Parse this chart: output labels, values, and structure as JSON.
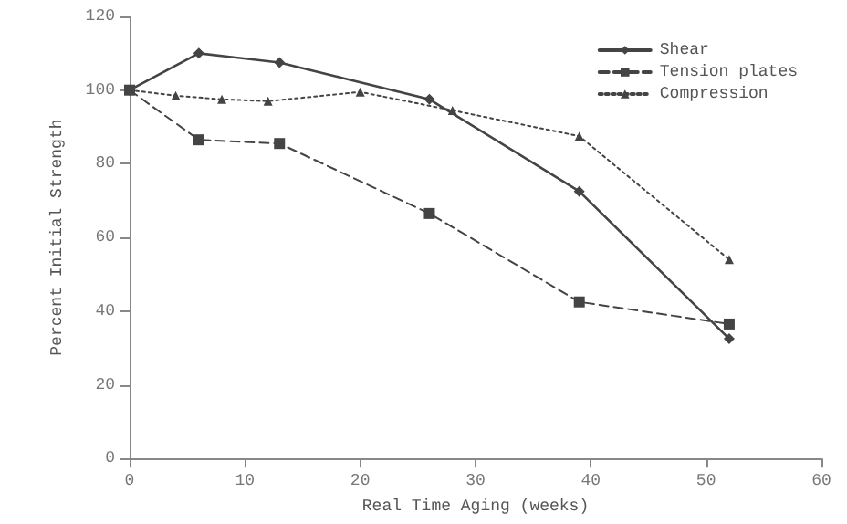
{
  "chart_data": {
    "type": "line",
    "xlabel": "Real Time Aging (weeks)",
    "ylabel": "Percent Initial Strength",
    "xlim": [
      0,
      60
    ],
    "xticks": [
      0,
      10,
      20,
      30,
      40,
      50,
      60
    ],
    "ylim": [
      0,
      120
    ],
    "yticks": [
      0,
      20,
      40,
      60,
      80,
      100,
      120
    ],
    "grid": false,
    "legend": "top right",
    "series": [
      {
        "name": "Shear",
        "color": "#444444",
        "marker": "diamond",
        "line_style": "solid",
        "x": [
          0,
          6,
          13,
          26,
          39,
          52
        ],
        "values": [
          100,
          110,
          107.5,
          97.5,
          72.5,
          32.5
        ]
      },
      {
        "name": "Tension plates",
        "color": "#444444",
        "marker": "square",
        "line_style": "dashed",
        "x": [
          0,
          6,
          13,
          26,
          39,
          52
        ],
        "values": [
          100,
          86.5,
          85.5,
          66.5,
          42.5,
          36.5
        ]
      },
      {
        "name": "Compression",
        "color": "#444444",
        "marker": "triangle",
        "line_style": "dotted",
        "x": [
          0,
          4,
          8,
          12,
          20,
          28,
          39,
          52
        ],
        "values": [
          100,
          98.5,
          97.5,
          97,
          99.5,
          94.5,
          87.5,
          54
        ]
      }
    ]
  }
}
